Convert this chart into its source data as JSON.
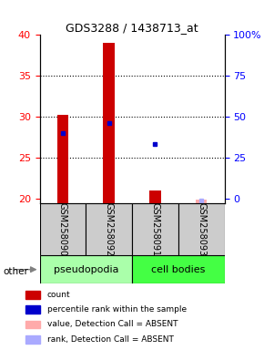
{
  "title": "GDS3288 / 1438713_at",
  "samples": [
    "GSM258090",
    "GSM258092",
    "GSM258091",
    "GSM258093"
  ],
  "detection_call": [
    "P",
    "P",
    "P",
    "A"
  ],
  "count_values": [
    30.3,
    39.0,
    21.0,
    19.9
  ],
  "rank_values": [
    28.0,
    29.3,
    26.7,
    19.8
  ],
  "ylim_left": [
    19.5,
    40
  ],
  "yticks_left": [
    20,
    25,
    30,
    35,
    40
  ],
  "ytick_labels_right": [
    "0",
    "25",
    "50",
    "75",
    "100%"
  ],
  "group_label_left": "pseudopodia",
  "group_label_right": "cell bodies",
  "other_label": "other",
  "legend_items": [
    {
      "color": "#cc0000",
      "label": "count"
    },
    {
      "color": "#0000cc",
      "label": "percentile rank within the sample"
    },
    {
      "color": "#ffaaaa",
      "label": "value, Detection Call = ABSENT"
    },
    {
      "color": "#aaaaff",
      "label": "rank, Detection Call = ABSENT"
    }
  ],
  "bar_width": 0.25,
  "bg_color_sample": "#cccccc",
  "bg_color_group1": "#aaffaa",
  "bg_color_group2": "#44ff44",
  "color_red": "#cc0000",
  "color_pink": "#ffaaaa",
  "color_blue": "#0000cc",
  "color_lightblue": "#aaaaff"
}
